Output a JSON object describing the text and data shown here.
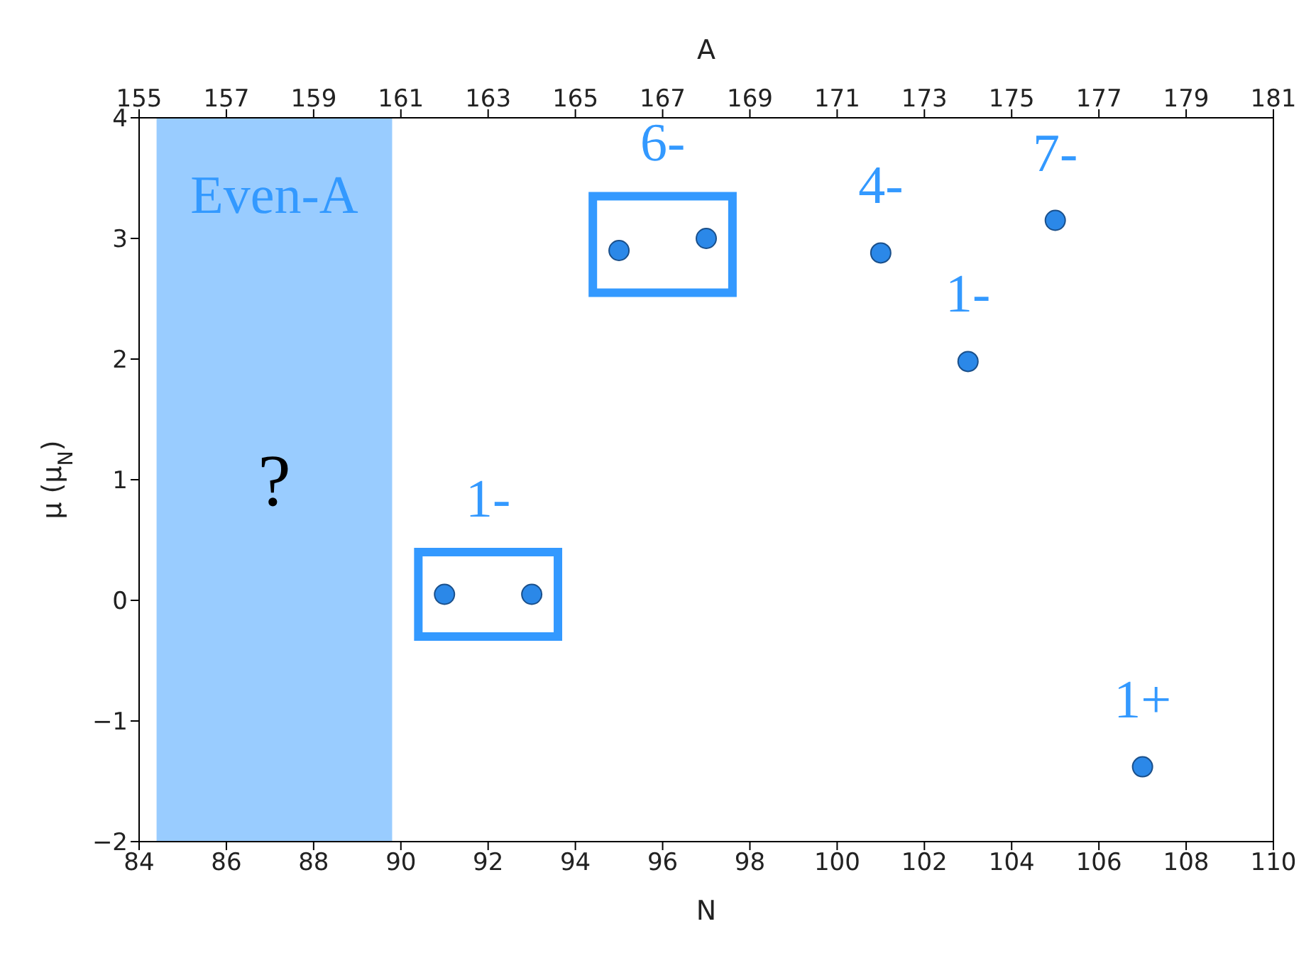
{
  "chart_data": {
    "type": "scatter",
    "xlabel": "N",
    "ylabel": "μ (μ$_{N}$)",
    "x2label": "A",
    "xlim": [
      84,
      110
    ],
    "xticks": [
      84,
      86,
      88,
      90,
      92,
      94,
      96,
      98,
      100,
      102,
      104,
      106,
      108,
      110
    ],
    "x2lim": [
      155,
      181
    ],
    "x2ticks": [
      155,
      157,
      159,
      161,
      163,
      165,
      167,
      169,
      171,
      173,
      175,
      177,
      179,
      181
    ],
    "ylim": [
      -2,
      4
    ],
    "yticks": [
      {
        "value": -2,
        "label": "−2"
      },
      {
        "value": -1,
        "label": "−1"
      },
      0,
      1,
      2,
      3,
      4
    ],
    "marker": "circle",
    "series": [
      {
        "color": "#2b88e8",
        "x": [
          91,
          93,
          95,
          97,
          101,
          103,
          105,
          107
        ],
        "values": [
          0.05,
          0.05,
          2.9,
          3.0,
          2.88,
          1.98,
          3.15,
          -1.38
        ]
      }
    ],
    "bands": [
      {
        "axis": "x",
        "from": 84.4,
        "to": 89.8,
        "label": "Even-A",
        "color": "#99ccff"
      }
    ],
    "annotations": [
      {
        "text": "1-",
        "x": 91,
        "y": 0.05
      },
      {
        "text": "6-",
        "x": 95,
        "y": 2.9
      },
      {
        "text": "4-",
        "x": 101,
        "y": 2.88
      },
      {
        "text": "1-",
        "x": 103,
        "y": 1.98
      },
      {
        "text": "7-",
        "x": 105,
        "y": 3.15
      },
      {
        "text": "1+",
        "x": 107,
        "y": -1.38
      },
      "?"
    ]
  }
}
